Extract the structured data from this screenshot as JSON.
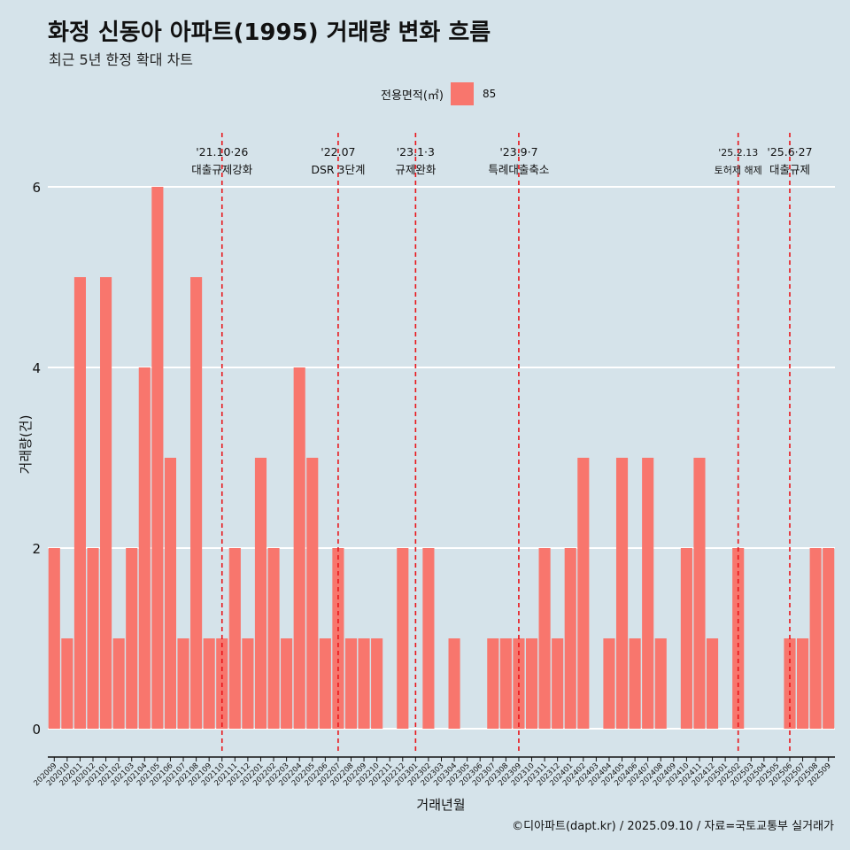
{
  "header": {
    "title": "화정 신동아 아파트(1995) 거래량 변화 흐름",
    "subtitle": "최근 5년 한정 확대 차트"
  },
  "legend": {
    "title": "전용면적(㎡)",
    "items": [
      {
        "label": "85",
        "color": "#f8766d"
      }
    ]
  },
  "credit": "©디아파트(dapt.kr) / 2025.09.10 / 자료=국토교통부 실거래가",
  "chart_data": {
    "type": "bar",
    "xlabel": "거래년월",
    "ylabel": "거래량(건)",
    "ylim": [
      -0.8,
      6.6
    ],
    "yticks": [
      0,
      2,
      4,
      6
    ],
    "grid": true,
    "legend_position": "top",
    "bar_color": "#f8766d",
    "categories": [
      "202009",
      "202010",
      "202011",
      "202012",
      "202101",
      "202102",
      "202103",
      "202104",
      "202105",
      "202106",
      "202107",
      "202108",
      "202109",
      "202110",
      "202111",
      "202112",
      "202201",
      "202202",
      "202203",
      "202204",
      "202205",
      "202206",
      "202207",
      "202208",
      "202209",
      "202210",
      "202211",
      "202212",
      "202301",
      "202302",
      "202303",
      "202304",
      "202305",
      "202306",
      "202307",
      "202308",
      "202309",
      "202310",
      "202311",
      "202312",
      "202401",
      "202402",
      "202403",
      "202404",
      "202405",
      "202406",
      "202407",
      "202408",
      "202409",
      "202410",
      "202411",
      "202412",
      "202501",
      "202502",
      "202503",
      "202504",
      "202505",
      "202506",
      "202507",
      "202508",
      "202509"
    ],
    "series": [
      {
        "values": [
          2,
          1,
          5,
          2,
          5,
          1,
          2,
          4,
          6,
          3,
          1,
          5,
          1,
          1,
          2,
          1,
          3,
          2,
          1,
          4,
          3,
          1,
          2,
          1,
          1,
          1,
          0,
          2,
          0,
          2,
          0,
          1,
          0,
          0,
          1,
          1,
          1,
          1,
          2,
          1,
          2,
          3,
          0,
          1,
          3,
          1,
          3,
          1,
          0,
          2,
          3,
          1,
          0,
          2,
          0,
          0,
          0,
          1,
          1,
          2,
          2
        ]
      }
    ],
    "annotations": [
      {
        "category": "202110",
        "date": "'21.10·26",
        "label": "대출규제강화"
      },
      {
        "category": "202207",
        "date": "'22.07",
        "label": "DSR 3단계"
      },
      {
        "category": "202301",
        "date": "'23.1·3",
        "label": "규제완화"
      },
      {
        "category": "202309",
        "date": "'23.9·7",
        "label": "특례대출축소"
      },
      {
        "category": "202502",
        "date": "'25.2.13",
        "label": "토허제 해제"
      },
      {
        "category": "202506",
        "date": "'25.6·27",
        "label": "대출규제"
      }
    ]
  }
}
